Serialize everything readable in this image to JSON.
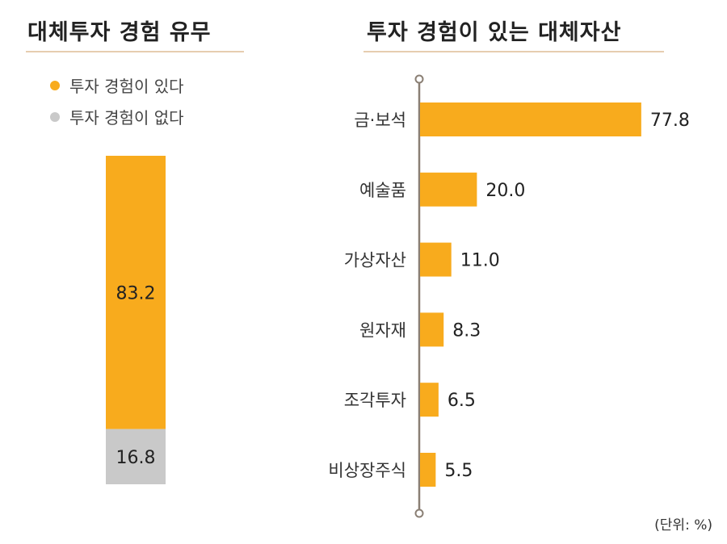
{
  "colors": {
    "yes": "#f8ab1d",
    "no": "#c9c9c9"
  },
  "chart_data": [
    {
      "type": "bar",
      "stacked": true,
      "title": "대체투자 경험 유무",
      "series": [
        {
          "name": "투자 경험이 있다",
          "values": [
            83.2
          ]
        },
        {
          "name": "투자 경험이 없다",
          "values": [
            16.8
          ]
        }
      ],
      "legend": "top-left"
    },
    {
      "type": "bar",
      "orientation": "horizontal",
      "title": "투자 경험이 있는 대체자산",
      "categories": [
        "금·보석",
        "예술품",
        "가상자산",
        "원자재",
        "조각투자",
        "비상장주식"
      ],
      "values": [
        77.8,
        20.0,
        11.0,
        8.3,
        6.5,
        5.5
      ],
      "value_labels": [
        "77.8",
        "20.0",
        "11.0",
        "8.3",
        "6.5",
        "5.5"
      ],
      "unit_note": "(단위: %)"
    }
  ]
}
